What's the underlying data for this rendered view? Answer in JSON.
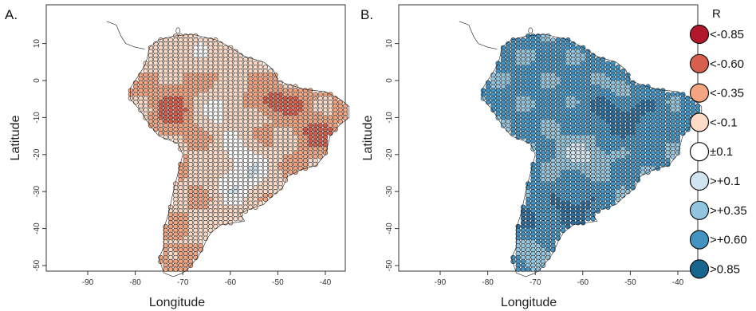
{
  "panels": [
    {
      "label": "A.",
      "xlabel": "Longitude",
      "ylabel": "Latitude",
      "map_theme": "warm"
    },
    {
      "label": "B.",
      "xlabel": "Longitude",
      "ylabel": "Latitude",
      "map_theme": "cool"
    }
  ],
  "axes": {
    "x_ticks": [
      "-90",
      "-80",
      "-70",
      "-60",
      "-50",
      "-40"
    ],
    "y_ticks": [
      "10",
      "0",
      "-10",
      "-20",
      "-30",
      "-40",
      "-50"
    ],
    "xlim": [
      -95,
      -32
    ],
    "ylim": [
      -52,
      17
    ]
  },
  "legend": {
    "title": "R",
    "items": [
      {
        "label": "<-0.85",
        "color": "#b2182b"
      },
      {
        "label": "<-0.60",
        "color": "#d6604d"
      },
      {
        "label": "<-0.35",
        "color": "#f4a582"
      },
      {
        "label": "<-0.1",
        "color": "#fddbc7"
      },
      {
        "label": "±0.1",
        "color": "#ffffff"
      },
      {
        "label": ">+0.1",
        "color": "#d1e5f0"
      },
      {
        "label": ">+0.35",
        "color": "#92c5de"
      },
      {
        "label": ">+0.60",
        "color": "#4393c3"
      },
      {
        "label": ">0.85",
        "color": "#17648f"
      }
    ]
  }
}
